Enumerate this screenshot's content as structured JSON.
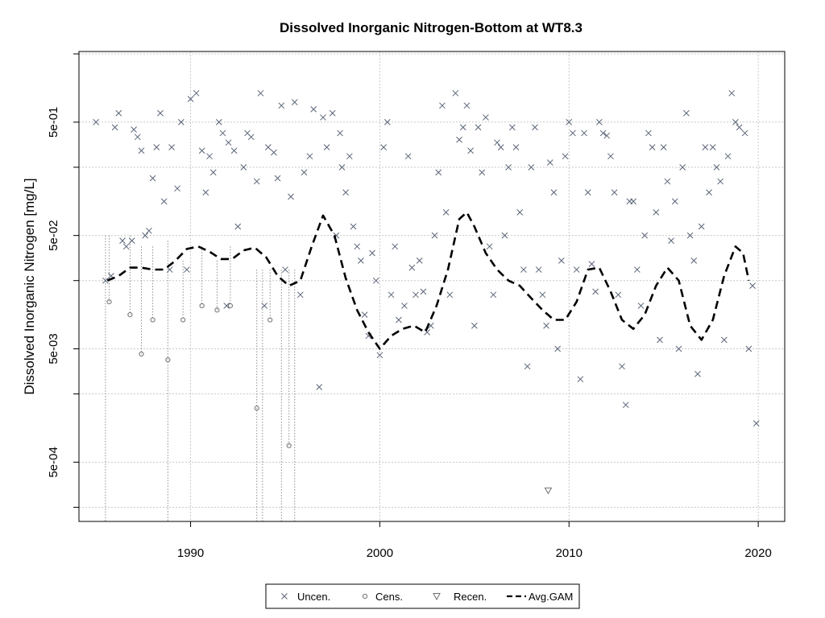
{
  "chart_data": {
    "type": "scatter",
    "title": "Dissolved Inorganic Nitrogen-Bottom at WT8.3",
    "xlabel": "",
    "ylabel": "Dissolved Inorganic Nitrogen [mg/L]",
    "y_scale": "log10",
    "xlim": [
      1984.1,
      2021.4
    ],
    "ylim": [
      0.00015,
      2.1
    ],
    "grid": true,
    "x_ticks": [
      1990,
      2000,
      2010,
      2020
    ],
    "x_tick_labels": [
      "1990",
      "2000",
      "2010",
      "2020"
    ],
    "y_ticks": [
      0.0002,
      0.0005,
      0.002,
      0.005,
      0.02,
      0.05,
      0.2,
      0.5,
      2
    ],
    "y_tick_labels": [
      "",
      "5e-04",
      "",
      "5e-03",
      "",
      "5e-02",
      "",
      "5e-01",
      ""
    ],
    "legend_position": "bottom",
    "series": [
      {
        "name": "Uncen.",
        "marker": "x",
        "color": "#5a6478",
        "points": [
          [
            1985.0,
            0.5
          ],
          [
            1985.5,
            0.02
          ],
          [
            1985.8,
            0.022
          ],
          [
            1986.0,
            0.45
          ],
          [
            1986.2,
            0.6
          ],
          [
            1986.4,
            0.045
          ],
          [
            1986.6,
            0.04
          ],
          [
            1986.9,
            0.045
          ],
          [
            1987.0,
            0.43
          ],
          [
            1987.2,
            0.37
          ],
          [
            1987.4,
            0.28
          ],
          [
            1987.6,
            0.05
          ],
          [
            1987.8,
            0.055
          ],
          [
            1988.0,
            0.16
          ],
          [
            1988.2,
            0.3
          ],
          [
            1988.4,
            0.6
          ],
          [
            1988.6,
            0.1
          ],
          [
            1988.9,
            0.025
          ],
          [
            1989.0,
            0.3
          ],
          [
            1989.3,
            0.13
          ],
          [
            1989.5,
            0.5
          ],
          [
            1989.8,
            0.025
          ],
          [
            1990.0,
            0.8
          ],
          [
            1990.3,
            0.9
          ],
          [
            1990.6,
            0.28
          ],
          [
            1990.8,
            0.12
          ],
          [
            1991.0,
            0.25
          ],
          [
            1991.2,
            0.18
          ],
          [
            1991.5,
            0.5
          ],
          [
            1991.7,
            0.4
          ],
          [
            1991.9,
            0.012
          ],
          [
            1992.0,
            0.33
          ],
          [
            1992.3,
            0.28
          ],
          [
            1992.5,
            0.06
          ],
          [
            1992.8,
            0.2
          ],
          [
            1993.0,
            0.4
          ],
          [
            1993.2,
            0.37
          ],
          [
            1993.5,
            0.15
          ],
          [
            1993.7,
            0.9
          ],
          [
            1993.9,
            0.012
          ],
          [
            1994.1,
            0.3
          ],
          [
            1994.4,
            0.27
          ],
          [
            1994.6,
            0.16
          ],
          [
            1994.8,
            0.7
          ],
          [
            1995.0,
            0.025
          ],
          [
            1995.3,
            0.11
          ],
          [
            1995.5,
            0.75
          ],
          [
            1995.8,
            0.015
          ],
          [
            1996.0,
            0.18
          ],
          [
            1996.3,
            0.25
          ],
          [
            1996.5,
            0.65
          ],
          [
            1996.8,
            0.0023
          ],
          [
            1997.0,
            0.55
          ],
          [
            1997.2,
            0.3
          ],
          [
            1997.5,
            0.6
          ],
          [
            1997.7,
            0.05
          ],
          [
            1997.9,
            0.4
          ],
          [
            1998.0,
            0.2
          ],
          [
            1998.2,
            0.12
          ],
          [
            1998.4,
            0.25
          ],
          [
            1998.6,
            0.06
          ],
          [
            1998.8,
            0.04
          ],
          [
            1999.0,
            0.03
          ],
          [
            1999.2,
            0.01
          ],
          [
            1999.4,
            0.0065
          ],
          [
            1999.6,
            0.035
          ],
          [
            1999.8,
            0.02
          ],
          [
            2000.0,
            0.0044
          ],
          [
            2000.2,
            0.3
          ],
          [
            2000.4,
            0.5
          ],
          [
            2000.6,
            0.015
          ],
          [
            2000.8,
            0.04
          ],
          [
            2001.0,
            0.009
          ],
          [
            2001.3,
            0.012
          ],
          [
            2001.5,
            0.25
          ],
          [
            2001.7,
            0.026
          ],
          [
            2001.9,
            0.015
          ],
          [
            2002.1,
            0.03
          ],
          [
            2002.3,
            0.016
          ],
          [
            2002.5,
            0.007
          ],
          [
            2002.7,
            0.008
          ],
          [
            2002.9,
            0.05
          ],
          [
            2003.1,
            0.18
          ],
          [
            2003.3,
            0.7
          ],
          [
            2003.5,
            0.08
          ],
          [
            2003.7,
            0.015
          ],
          [
            2004.0,
            0.9
          ],
          [
            2004.2,
            0.35
          ],
          [
            2004.4,
            0.45
          ],
          [
            2004.6,
            0.7
          ],
          [
            2004.8,
            0.28
          ],
          [
            2005.0,
            0.008
          ],
          [
            2005.2,
            0.45
          ],
          [
            2005.4,
            0.18
          ],
          [
            2005.6,
            0.55
          ],
          [
            2005.8,
            0.04
          ],
          [
            2006.0,
            0.015
          ],
          [
            2006.2,
            0.33
          ],
          [
            2006.4,
            0.3
          ],
          [
            2006.6,
            0.05
          ],
          [
            2006.8,
            0.2
          ],
          [
            2007.0,
            0.45
          ],
          [
            2007.2,
            0.3
          ],
          [
            2007.4,
            0.08
          ],
          [
            2007.6,
            0.025
          ],
          [
            2007.8,
            0.0035
          ],
          [
            2008.0,
            0.2
          ],
          [
            2008.2,
            0.45
          ],
          [
            2008.4,
            0.025
          ],
          [
            2008.6,
            0.015
          ],
          [
            2008.8,
            0.008
          ],
          [
            2009.0,
            0.22
          ],
          [
            2009.2,
            0.12
          ],
          [
            2009.4,
            0.005
          ],
          [
            2009.6,
            0.03
          ],
          [
            2009.8,
            0.25
          ],
          [
            2010.0,
            0.5
          ],
          [
            2010.2,
            0.4
          ],
          [
            2010.4,
            0.025
          ],
          [
            2010.6,
            0.0027
          ],
          [
            2010.8,
            0.4
          ],
          [
            2011.0,
            0.12
          ],
          [
            2011.2,
            0.028
          ],
          [
            2011.4,
            0.016
          ],
          [
            2011.6,
            0.5
          ],
          [
            2011.8,
            0.4
          ],
          [
            2012.0,
            0.38
          ],
          [
            2012.2,
            0.25
          ],
          [
            2012.4,
            0.12
          ],
          [
            2012.6,
            0.015
          ],
          [
            2012.8,
            0.0035
          ],
          [
            2013.0,
            0.0016
          ],
          [
            2013.2,
            0.1
          ],
          [
            2013.4,
            0.1
          ],
          [
            2013.6,
            0.025
          ],
          [
            2013.8,
            0.012
          ],
          [
            2014.0,
            0.05
          ],
          [
            2014.2,
            0.4
          ],
          [
            2014.4,
            0.3
          ],
          [
            2014.6,
            0.08
          ],
          [
            2014.8,
            0.006
          ],
          [
            2015.0,
            0.3
          ],
          [
            2015.2,
            0.15
          ],
          [
            2015.4,
            0.045
          ],
          [
            2015.6,
            0.1
          ],
          [
            2015.8,
            0.005
          ],
          [
            2016.0,
            0.2
          ],
          [
            2016.2,
            0.6
          ],
          [
            2016.4,
            0.05
          ],
          [
            2016.6,
            0.03
          ],
          [
            2016.8,
            0.003
          ],
          [
            2017.0,
            0.06
          ],
          [
            2017.2,
            0.3
          ],
          [
            2017.4,
            0.12
          ],
          [
            2017.6,
            0.3
          ],
          [
            2017.8,
            0.2
          ],
          [
            2018.0,
            0.15
          ],
          [
            2018.2,
            0.006
          ],
          [
            2018.4,
            0.25
          ],
          [
            2018.6,
            0.9
          ],
          [
            2018.8,
            0.5
          ],
          [
            2019.0,
            0.45
          ],
          [
            2019.3,
            0.4
          ],
          [
            2019.5,
            0.005
          ],
          [
            2019.7,
            0.018
          ],
          [
            2019.9,
            0.0011
          ]
        ]
      },
      {
        "name": "Cens.",
        "marker": "o",
        "color": "#707070",
        "points": [
          [
            1985.7,
            0.013
          ],
          [
            1986.8,
            0.01
          ],
          [
            1987.4,
            0.0045
          ],
          [
            1988.0,
            0.009
          ],
          [
            1988.8,
            0.004
          ],
          [
            1989.6,
            0.009
          ],
          [
            1990.6,
            0.012
          ],
          [
            1991.4,
            0.011
          ],
          [
            1992.1,
            0.012
          ],
          [
            1993.5,
            0.0015
          ],
          [
            1994.2,
            0.009
          ],
          [
            1995.2,
            0.0007
          ]
        ]
      },
      {
        "name": "Recen.",
        "marker": "triangle-down",
        "color": "#707070",
        "points": [
          [
            2008.9,
            0.00028
          ]
        ]
      }
    ],
    "censored_links": [
      [
        1985.5,
        0.05,
        0.00015
      ],
      [
        1985.7,
        0.05,
        0.013
      ],
      [
        1986.8,
        0.05,
        0.01
      ],
      [
        1987.4,
        0.04,
        0.0045
      ],
      [
        1988.0,
        0.04,
        0.009
      ],
      [
        1988.8,
        0.045,
        0.00015
      ],
      [
        1989.6,
        0.03,
        0.009
      ],
      [
        1990.6,
        0.04,
        0.012
      ],
      [
        1991.4,
        0.03,
        0.011
      ],
      [
        1992.1,
        0.04,
        0.012
      ],
      [
        1993.5,
        0.025,
        0.00015
      ],
      [
        1993.8,
        0.025,
        0.00015
      ],
      [
        1994.2,
        0.025,
        0.009
      ],
      [
        1994.8,
        0.025,
        0.00015
      ],
      [
        1995.2,
        0.025,
        0.0007
      ],
      [
        1995.5,
        0.025,
        0.00015
      ]
    ],
    "avg_gam": {
      "name": "Avg.GAM",
      "style": "dashed",
      "color": "#000000",
      "x": [
        1985.6,
        1986.2,
        1986.8,
        1987.4,
        1988.0,
        1988.6,
        1989.2,
        1989.8,
        1990.4,
        1991.0,
        1991.6,
        1992.2,
        1992.8,
        1993.4,
        1994.0,
        1994.6,
        1995.2,
        1995.8,
        1996.4,
        1997.0,
        1997.6,
        1998.2,
        1998.8,
        1999.4,
        2000.0,
        2000.6,
        2001.2,
        2001.8,
        2002.4,
        2003.0,
        2003.6,
        2004.2,
        2004.6,
        2005.0,
        2005.6,
        2006.2,
        2006.8,
        2007.4,
        2008.0,
        2008.6,
        2009.2,
        2009.8,
        2010.4,
        2011.0,
        2011.6,
        2012.2,
        2012.8,
        2013.4,
        2014.0,
        2014.6,
        2015.2,
        2015.8,
        2016.4,
        2017.0,
        2017.6,
        2018.2,
        2018.8,
        2019.2,
        2019.5
      ],
      "y": [
        0.02,
        0.022,
        0.026,
        0.026,
        0.025,
        0.025,
        0.03,
        0.038,
        0.04,
        0.036,
        0.031,
        0.031,
        0.037,
        0.039,
        0.032,
        0.022,
        0.018,
        0.02,
        0.04,
        0.075,
        0.05,
        0.021,
        0.011,
        0.007,
        0.005,
        0.0065,
        0.0075,
        0.008,
        0.007,
        0.012,
        0.025,
        0.07,
        0.08,
        0.06,
        0.035,
        0.025,
        0.02,
        0.018,
        0.014,
        0.011,
        0.009,
        0.009,
        0.013,
        0.025,
        0.026,
        0.016,
        0.009,
        0.0075,
        0.01,
        0.018,
        0.026,
        0.02,
        0.008,
        0.006,
        0.009,
        0.022,
        0.04,
        0.035,
        0.02
      ]
    }
  },
  "legend": {
    "items": [
      {
        "label": "Uncen.",
        "marker": "x"
      },
      {
        "label": "Cens.",
        "marker": "o"
      },
      {
        "label": "Recen.",
        "marker": "triangle-down"
      },
      {
        "label": "Avg.GAM",
        "marker": "dashed-line"
      }
    ]
  }
}
